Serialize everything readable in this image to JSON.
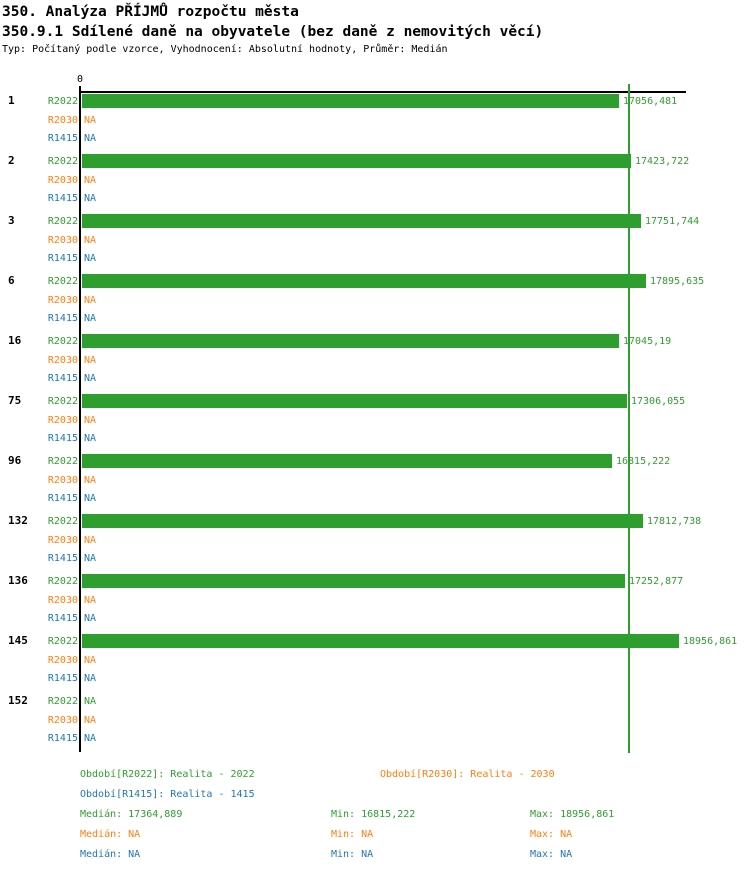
{
  "header": {
    "title": "350. Analýza PŘÍJMŮ rozpočtu města",
    "subtitle": "350.9.1 Sdílené daně na obyvatele (bez daně z nemovitých věcí)",
    "meta": "Typ: Počítaný podle vzorce, Vyhodnocení: Absolutní hodnoty, Průměr: Medián"
  },
  "colors": {
    "r2022": "#2e9e2e",
    "r2030": "#ff7f0e",
    "r1415": "#1f77b4",
    "axis": "#000000",
    "median_line": "#2e9e2e"
  },
  "na_text": "NA",
  "chart_data": {
    "type": "bar",
    "orientation": "horizontal",
    "title": "350. Analýza PŘÍJMŮ rozpočtu města",
    "subtitle": "350.9.1 Sdílené daně na obyvatele (bez daně z nemovitých věcí)",
    "categories": [
      "1",
      "2",
      "3",
      "6",
      "16",
      "75",
      "96",
      "132",
      "136",
      "145",
      "152"
    ],
    "series": [
      {
        "name": "R2022",
        "color_key": "r2022",
        "values": [
          17056.481,
          17423.722,
          17751.744,
          17895.635,
          17045.19,
          17306.055,
          16815.222,
          17812.738,
          17252.877,
          18956.861,
          null
        ],
        "value_labels": [
          "17056,481",
          "17423,722",
          "17751,744",
          "17895,635",
          "17045,19",
          "17306,055",
          "16815,222",
          "17812,738",
          "17252,877",
          "18956,861",
          "NA"
        ]
      },
      {
        "name": "R2030",
        "color_key": "r2030",
        "values": [
          null,
          null,
          null,
          null,
          null,
          null,
          null,
          null,
          null,
          null,
          null
        ],
        "value_labels": [
          "NA",
          "NA",
          "NA",
          "NA",
          "NA",
          "NA",
          "NA",
          "NA",
          "NA",
          "NA",
          "NA"
        ]
      },
      {
        "name": "R1415",
        "color_key": "r1415",
        "values": [
          null,
          null,
          null,
          null,
          null,
          null,
          null,
          null,
          null,
          null,
          null
        ],
        "value_labels": [
          "NA",
          "NA",
          "NA",
          "NA",
          "NA",
          "NA",
          "NA",
          "NA",
          "NA",
          "NA",
          "NA"
        ]
      }
    ],
    "x_axis": {
      "min": 0,
      "zero_label": "0",
      "gridlines": false,
      "median_reference_value": 17364.889
    },
    "stats": {
      "R2022": {
        "median": "17364,889",
        "min": "16815,222",
        "max": "18956,861"
      },
      "R2030": {
        "median": "NA",
        "min": "NA",
        "max": "NA"
      },
      "R1415": {
        "median": "NA",
        "min": "NA",
        "max": "NA"
      }
    }
  },
  "legend": {
    "period_r2022": "Období[R2022]: Realita - 2022",
    "period_r2030": "Období[R2030]: Realita - 2030",
    "period_r1415": "Období[R1415]: Realita - 1415",
    "stats_r2022": {
      "median": "Medián: 17364,889",
      "min": "Min: 16815,222",
      "max": "Max: 18956,861"
    },
    "stats_r2030": {
      "median": "Medián: NA",
      "min": "Min: NA",
      "max": "Max: NA"
    },
    "stats_r1415": {
      "median": "Medián: NA",
      "min": "Min: NA",
      "max": "Max: NA"
    }
  }
}
